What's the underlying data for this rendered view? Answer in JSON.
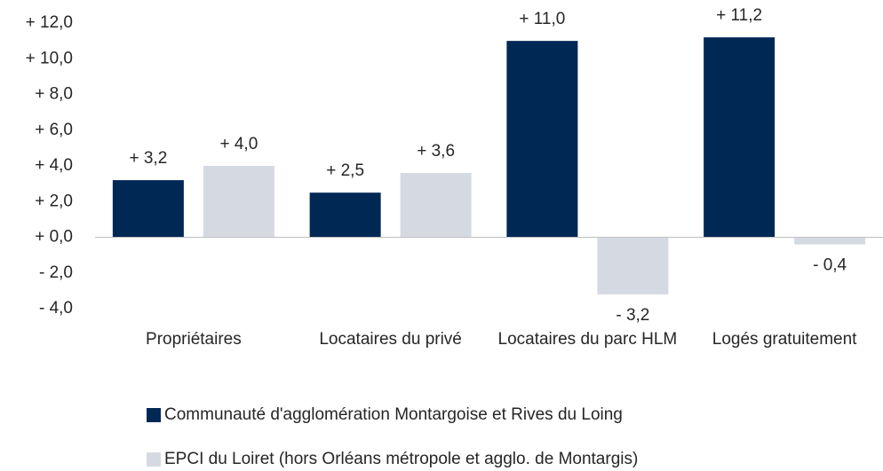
{
  "chart_data": {
    "type": "bar",
    "categories": [
      "Propriétaires",
      "Locataires du privé",
      "Locataires du parc HLM",
      "Logés gratuitement"
    ],
    "series": [
      {
        "name": "Communauté d'agglomération Montargoise et Rives du Loing",
        "color": "#002855",
        "values": [
          3.2,
          2.5,
          11.0,
          11.2
        ],
        "value_labels": [
          "+ 3,2",
          "+ 2,5",
          "+ 11,0",
          "+ 11,2"
        ]
      },
      {
        "name": "EPCI du Loiret (hors Orléans métropole et agglo. de Montargis)",
        "color": "#d5dae2",
        "values": [
          4.0,
          3.6,
          -3.2,
          -0.4
        ],
        "value_labels": [
          "+ 4,0",
          "+ 3,6",
          "- 3,2",
          "- 0,4"
        ]
      }
    ],
    "ylim": [
      -4,
      12
    ],
    "yticks": [
      {
        "value": -4,
        "label": "- 4,0"
      },
      {
        "value": -2,
        "label": "- 2,0"
      },
      {
        "value": 0,
        "label": "+ 0,0"
      },
      {
        "value": 2,
        "label": "+ 2,0"
      },
      {
        "value": 4,
        "label": "+ 4,0"
      },
      {
        "value": 6,
        "label": "+ 6,0"
      },
      {
        "value": 8,
        "label": "+ 8,0"
      },
      {
        "value": 10,
        "label": "+ 10,0"
      },
      {
        "value": 12,
        "label": "+ 12,0"
      }
    ],
    "legend": "bottom"
  }
}
